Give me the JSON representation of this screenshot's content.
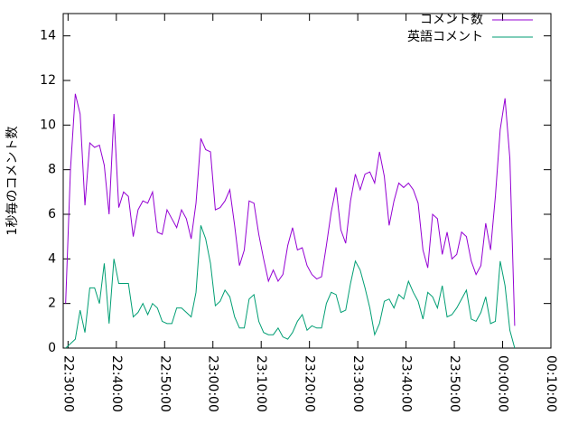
{
  "chart_data": {
    "type": "line",
    "ylabel": "1秒毎のコメント数",
    "x": [
      "22:29:30",
      "22:30:30",
      "22:31:30",
      "22:32:30",
      "22:33:30",
      "22:34:30",
      "22:35:30",
      "22:36:30",
      "22:37:30",
      "22:38:30",
      "22:39:30",
      "22:40:30",
      "22:41:30",
      "22:42:30",
      "22:43:30",
      "22:44:30",
      "22:45:30",
      "22:46:30",
      "22:47:30",
      "22:48:30",
      "22:49:30",
      "22:50:30",
      "22:51:30",
      "22:52:30",
      "22:53:30",
      "22:54:30",
      "22:55:30",
      "22:56:30",
      "22:57:30",
      "22:58:30",
      "22:59:30",
      "23:00:30",
      "23:01:30",
      "23:02:30",
      "23:03:30",
      "23:04:30",
      "23:05:30",
      "23:06:30",
      "23:07:30",
      "23:08:30",
      "23:09:30",
      "23:10:30",
      "23:11:30",
      "23:12:30",
      "23:13:30",
      "23:14:30",
      "23:15:30",
      "23:16:30",
      "23:17:30",
      "23:18:30",
      "23:19:30",
      "23:20:30",
      "23:21:30",
      "23:22:30",
      "23:23:30",
      "23:24:30",
      "23:25:30",
      "23:26:30",
      "23:27:30",
      "23:28:30",
      "23:29:30",
      "23:30:30",
      "23:31:30",
      "23:32:30",
      "23:33:30",
      "23:34:30",
      "23:35:30",
      "23:36:30",
      "23:37:30",
      "23:38:30",
      "23:39:30",
      "23:40:30",
      "23:41:30",
      "23:42:30",
      "23:43:30",
      "23:44:30",
      "23:45:30",
      "23:46:30",
      "23:47:30",
      "23:48:30",
      "23:49:30",
      "23:50:30",
      "23:51:30",
      "23:52:30",
      "23:53:30",
      "23:54:30",
      "23:55:30",
      "23:56:30",
      "23:57:30",
      "23:58:30",
      "23:59:30",
      "00:00:30",
      "00:01:30",
      "00:02:30"
    ],
    "series": [
      {
        "name": "コメント数",
        "color": "#9400d3",
        "values": [
          2,
          8,
          11.4,
          10.5,
          6.4,
          9.2,
          9,
          9.1,
          8.2,
          6,
          10.5,
          6.3,
          7,
          6.8,
          5,
          6.2,
          6.6,
          6.5,
          7,
          5.2,
          5.1,
          6.2,
          5.8,
          5.4,
          6.2,
          5.8,
          4.9,
          6.5,
          9.4,
          8.9,
          8.8,
          6.2,
          6.3,
          6.6,
          7.1,
          5.5,
          3.7,
          4.4,
          6.6,
          6.5,
          5.1,
          4,
          3,
          3.5,
          3,
          3.3,
          4.6,
          5.4,
          4.4,
          4.5,
          3.7,
          3.3,
          3.1,
          3.2,
          4.6,
          6.1,
          7.2,
          5.3,
          4.7,
          6.6,
          7.8,
          7.1,
          7.8,
          7.9,
          7.4,
          8.8,
          7.7,
          5.5,
          6.6,
          7.4,
          7.2,
          7.4,
          7.1,
          6.5,
          4.4,
          3.6,
          6,
          5.8,
          4.2,
          5.2,
          4,
          4.2,
          5.2,
          5,
          3.9,
          3.3,
          3.7,
          5.6,
          4.4,
          6.8,
          9.8,
          11.2,
          8.5,
          1
        ]
      },
      {
        "name": "英語コメント",
        "color": "#009e73",
        "values": [
          0,
          0.2,
          0.4,
          1.7,
          0.7,
          2.7,
          2.7,
          2,
          3.8,
          1.1,
          4,
          2.9,
          2.9,
          2.9,
          1.4,
          1.6,
          2,
          1.5,
          2,
          1.8,
          1.2,
          1.1,
          1.1,
          1.8,
          1.8,
          1.6,
          1.4,
          2.5,
          5.5,
          4.9,
          3.8,
          1.9,
          2.1,
          2.6,
          2.3,
          1.4,
          0.9,
          0.9,
          2.2,
          2.4,
          1.2,
          0.7,
          0.6,
          0.6,
          0.9,
          0.5,
          0.4,
          0.7,
          1.2,
          1.5,
          0.8,
          1,
          0.9,
          0.9,
          2,
          2.5,
          2.4,
          1.6,
          1.7,
          2.9,
          3.9,
          3.5,
          2.7,
          1.8,
          0.6,
          1.1,
          2.1,
          2.2,
          1.8,
          2.4,
          2.2,
          3,
          2.5,
          2.1,
          1.3,
          2.5,
          2.3,
          1.8,
          2.8,
          1.4,
          1.5,
          1.8,
          2.2,
          2.6,
          1.3,
          1.2,
          1.6,
          2.3,
          1.1,
          1.2,
          3.9,
          2.8,
          0.8,
          0
        ]
      }
    ],
    "xlim": [
      "22:29:00",
      "00:10:00"
    ],
    "xticks": [
      "22:30:00",
      "22:40:00",
      "22:50:00",
      "23:00:00",
      "23:10:00",
      "23:20:00",
      "23:30:00",
      "23:40:00",
      "23:50:00",
      "00:00:00",
      "00:10:00"
    ],
    "ylim": [
      0,
      15
    ],
    "yticks": [
      0,
      2,
      4,
      6,
      8,
      10,
      12,
      14
    ],
    "legend": "top-right"
  }
}
